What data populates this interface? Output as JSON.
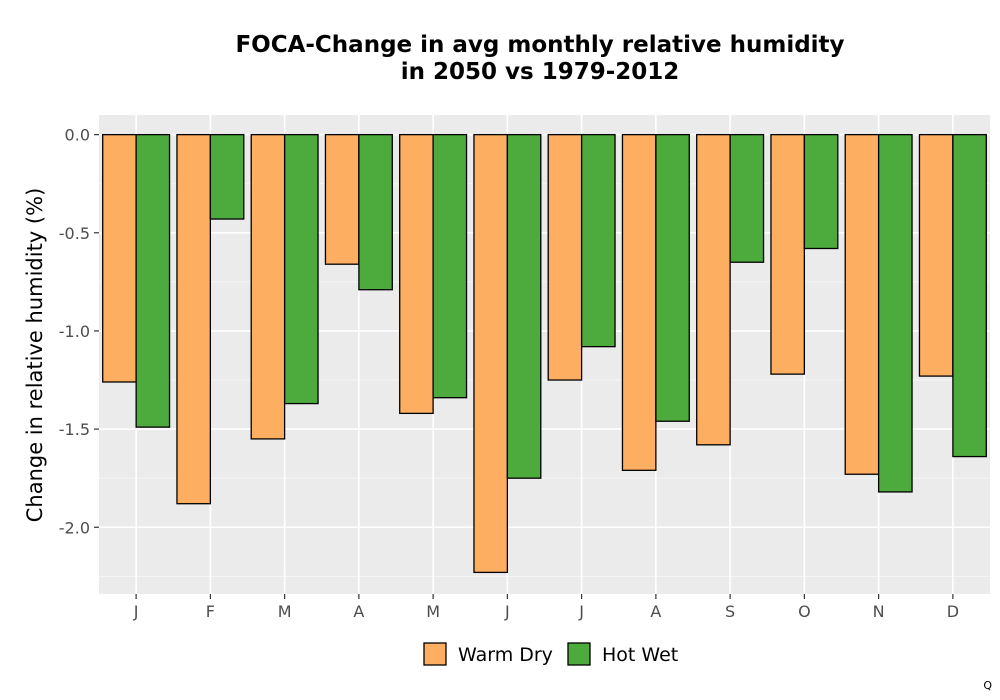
{
  "chart_data": {
    "type": "bar",
    "title_lines": [
      "FOCA-Change in avg monthly relative humidity",
      "in 2050 vs 1979-2012"
    ],
    "xlabel": "",
    "ylabel": "Change in relative humidity (%)",
    "categories": [
      "J",
      "F",
      "M",
      "A",
      "M",
      "J",
      "J",
      "A",
      "S",
      "O",
      "N",
      "D"
    ],
    "series": [
      {
        "name": "Warm Dry",
        "color": "#FDAE61",
        "values": [
          -1.26,
          -1.88,
          -1.55,
          -0.66,
          -1.42,
          -2.23,
          -1.25,
          -1.71,
          -1.58,
          -1.22,
          -1.73,
          -1.23
        ]
      },
      {
        "name": "Hot Wet",
        "color": "#4DAA3C",
        "values": [
          -1.49,
          -0.43,
          -1.37,
          -0.79,
          -1.34,
          -1.75,
          -1.08,
          -1.46,
          -0.65,
          -0.58,
          -1.82,
          -1.64
        ]
      }
    ],
    "ylim": [
      -2.34,
      0.1
    ],
    "yticks": [
      0.0,
      -0.5,
      -1.0,
      -1.5,
      -2.0
    ],
    "ytick_labels": [
      "0.0",
      "-0.5",
      "-1.0",
      "-1.5",
      "-2.0"
    ],
    "grid": true,
    "legend_position": "bottom"
  },
  "corner_label": "Q"
}
